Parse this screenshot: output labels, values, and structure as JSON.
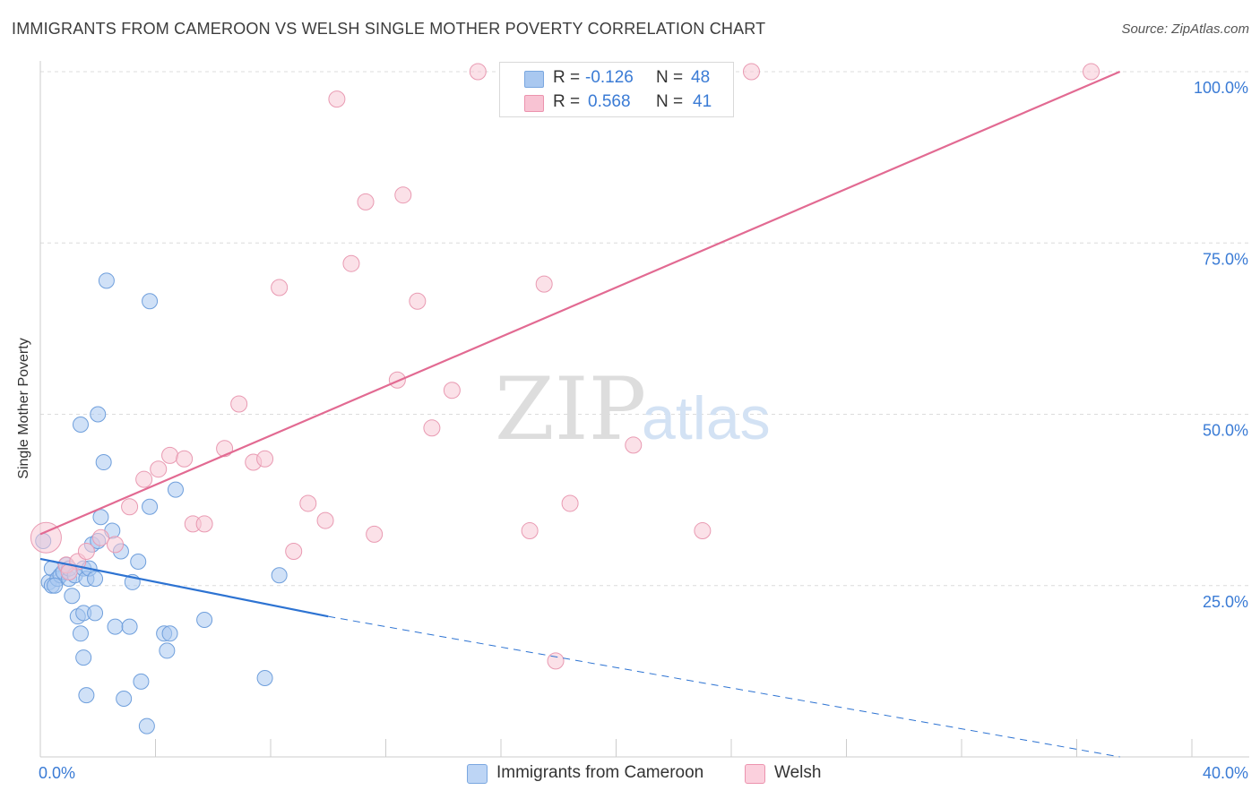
{
  "title": "IMMIGRANTS FROM CAMEROON VS WELSH SINGLE MOTHER POVERTY CORRELATION CHART",
  "source": "Source: ZipAtlas.com",
  "watermark": {
    "zip": "ZIP",
    "atlas": "atlas"
  },
  "legend_stats": [
    {
      "r_label": "R =",
      "r_value": "-0.126",
      "n_label": "N =",
      "n_value": "48",
      "color": "#a9c8f0",
      "border": "#7aa7e0"
    },
    {
      "r_label": "R =",
      "r_value": "0.568",
      "n_label": "N =",
      "n_value": "41",
      "color": "#f8c3d3",
      "border": "#ec93ae"
    }
  ],
  "legend": [
    {
      "label": "Immigrants from Cameroon",
      "color": "#bdd5f5",
      "border": "#7aa7e0"
    },
    {
      "label": "Welsh",
      "color": "#fbd0dd",
      "border": "#ec93ae"
    }
  ],
  "colors": {
    "blue_point": "#a9c8f0",
    "blue_edge": "#6f9fdc",
    "blue_line": "#2d73d2",
    "pink_point": "#f8c8d6",
    "pink_edge": "#e99ab2",
    "pink_line": "#e26a92",
    "axis_text": "#3a7bd5",
    "grid": "#dcdcdc"
  },
  "chart_data": {
    "type": "scatter",
    "title": "IMMIGRANTS FROM CAMEROON VS WELSH SINGLE MOTHER POVERTY CORRELATION CHART",
    "xlabel": "",
    "ylabel": "Single Mother Poverty",
    "xlim": [
      0,
      40
    ],
    "ylim": [
      0,
      100
    ],
    "x_tick_labels": [
      "0.0%",
      "40.0%"
    ],
    "y_tick_labels": [
      "25.0%",
      "50.0%",
      "75.0%",
      "100.0%"
    ],
    "y_ticks": [
      25,
      50,
      75,
      100
    ],
    "grid": true,
    "legend_position": "bottom-center",
    "series": [
      {
        "name": "Immigrants from Cameroon",
        "r": -0.126,
        "n": 48,
        "trend": {
          "x0": 0,
          "y0": 28.9,
          "x1": 10,
          "y1": 20.5,
          "dashed_to_x": 37.5,
          "dashed_to_y": 0
        },
        "points": [
          [
            0.1,
            31.5
          ],
          [
            0.3,
            25.5
          ],
          [
            0.4,
            25.0
          ],
          [
            0.4,
            27.5
          ],
          [
            0.6,
            26.0
          ],
          [
            0.7,
            26.5
          ],
          [
            0.8,
            27.0
          ],
          [
            0.9,
            28.0
          ],
          [
            1.0,
            26.0
          ],
          [
            1.0,
            27.5
          ],
          [
            1.1,
            23.5
          ],
          [
            1.2,
            26.5
          ],
          [
            1.3,
            20.5
          ],
          [
            1.4,
            18.0
          ],
          [
            1.5,
            27.5
          ],
          [
            1.6,
            26.0
          ],
          [
            1.7,
            27.5
          ],
          [
            1.4,
            48.5
          ],
          [
            1.5,
            21.0
          ],
          [
            1.5,
            14.5
          ],
          [
            1.6,
            9.0
          ],
          [
            1.8,
            31.0
          ],
          [
            1.9,
            26.0
          ],
          [
            1.9,
            21.0
          ],
          [
            2.0,
            31.5
          ],
          [
            2.0,
            50.0
          ],
          [
            2.1,
            35.0
          ],
          [
            2.2,
            43.0
          ],
          [
            2.3,
            69.5
          ],
          [
            2.5,
            33.0
          ],
          [
            2.6,
            19.0
          ],
          [
            2.8,
            30.0
          ],
          [
            2.9,
            8.5
          ],
          [
            3.1,
            19.0
          ],
          [
            3.2,
            25.5
          ],
          [
            3.4,
            28.5
          ],
          [
            3.5,
            11.0
          ],
          [
            3.7,
            4.5
          ],
          [
            3.8,
            36.5
          ],
          [
            3.8,
            66.5
          ],
          [
            4.3,
            18.0
          ],
          [
            4.4,
            15.5
          ],
          [
            4.5,
            18.0
          ],
          [
            4.7,
            39.0
          ],
          [
            5.7,
            20.0
          ],
          [
            7.8,
            11.5
          ],
          [
            8.3,
            26.5
          ],
          [
            0.5,
            25.0
          ]
        ]
      },
      {
        "name": "Welsh",
        "r": 0.568,
        "n": 41,
        "trend": {
          "x0": 0,
          "y0": 32.5,
          "x1": 37.5,
          "y1": 100
        },
        "points": [
          [
            0.2,
            32.0
          ],
          [
            0.9,
            28.0
          ],
          [
            1.3,
            28.5
          ],
          [
            1.6,
            30.0
          ],
          [
            2.1,
            32.0
          ],
          [
            2.6,
            31.0
          ],
          [
            3.1,
            36.5
          ],
          [
            3.6,
            40.5
          ],
          [
            4.1,
            42.0
          ],
          [
            4.5,
            44.0
          ],
          [
            5.0,
            43.5
          ],
          [
            5.3,
            34.0
          ],
          [
            5.7,
            34.0
          ],
          [
            6.4,
            45.0
          ],
          [
            6.9,
            51.5
          ],
          [
            7.4,
            43.0
          ],
          [
            7.8,
            43.5
          ],
          [
            8.3,
            68.5
          ],
          [
            8.8,
            30.0
          ],
          [
            9.3,
            37.0
          ],
          [
            9.9,
            34.5
          ],
          [
            10.3,
            96.0
          ],
          [
            10.8,
            72.0
          ],
          [
            11.3,
            81.0
          ],
          [
            11.6,
            32.5
          ],
          [
            12.4,
            55.0
          ],
          [
            12.6,
            82.0
          ],
          [
            13.1,
            66.5
          ],
          [
            13.6,
            48.0
          ],
          [
            14.3,
            53.5
          ],
          [
            15.2,
            100.0
          ],
          [
            17.0,
            33.0
          ],
          [
            17.5,
            69.0
          ],
          [
            17.9,
            14.0
          ],
          [
            18.4,
            37.0
          ],
          [
            19.8,
            100.0
          ],
          [
            20.6,
            45.5
          ],
          [
            23.0,
            33.0
          ],
          [
            24.7,
            100.0
          ],
          [
            36.5,
            100.0
          ],
          [
            1.0,
            27.0
          ]
        ]
      }
    ]
  }
}
